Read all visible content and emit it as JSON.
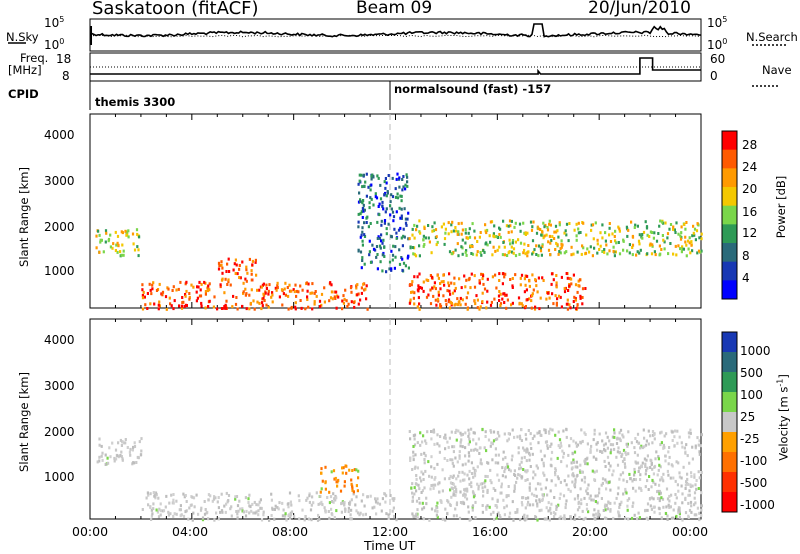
{
  "header": {
    "station": "Saskatoon (fitACF)",
    "beam": "Beam 09",
    "date": "20/Jun/2010"
  },
  "noise_panel": {
    "left_label": "N.Sky",
    "right_label": "N.Search",
    "left_ticks": [
      "10^5",
      "10^0"
    ],
    "right_ticks": [
      "10^5",
      "10^0"
    ]
  },
  "freq_panel": {
    "left_label_1": "Freq.",
    "left_label_2": "[MHz]",
    "right_label": "Nave",
    "left_ticks": [
      "18",
      "8"
    ],
    "right_ticks": [
      "60",
      "0"
    ]
  },
  "cpid": {
    "label": "CPID",
    "segment_1": "themis 3300",
    "segment_2": "normalsound (fast) -157"
  },
  "chart_data": [
    {
      "type": "heatmap",
      "name": "power",
      "ylabel": "Slant Range [km]",
      "xlabel": "",
      "xlim": [
        0,
        24
      ],
      "ylim": [
        180,
        4600
      ],
      "x_ticks": [
        "00:00",
        "04:00",
        "08:00",
        "12:00",
        "16:00",
        "20:00",
        "00:00"
      ],
      "y_ticks": [
        "1000",
        "2000",
        "3000",
        "4000"
      ],
      "colorbar_label": "Power [dB]",
      "colorbar_ticks": [
        "28",
        "24",
        "20",
        "16",
        "12",
        "8",
        "4"
      ],
      "colorbar_colors": [
        "#ff0000",
        "#ff5a00",
        "#ff9a00",
        "#f4c800",
        "#7ad64a",
        "#2e9a56",
        "#2a6a7a",
        "#1838b4",
        "#0000ff"
      ],
      "features": [
        {
          "time_start": 0.2,
          "time_end": 2.0,
          "range_start": 1400,
          "range_end": 2000,
          "level": "mid"
        },
        {
          "time_start": 2.0,
          "time_end": 11.0,
          "range_start": 180,
          "range_end": 800,
          "level": "high"
        },
        {
          "time_start": 5.0,
          "time_end": 6.5,
          "range_start": 800,
          "range_end": 1400,
          "level": "high"
        },
        {
          "time_start": 10.5,
          "time_end": 12.5,
          "range_start": 1000,
          "range_end": 3300,
          "level": "low"
        },
        {
          "time_start": 12.5,
          "time_end": 19.5,
          "range_start": 180,
          "range_end": 1000,
          "level": "high"
        },
        {
          "time_start": 12.5,
          "time_end": 24.0,
          "range_start": 1400,
          "range_end": 2200,
          "level": "mid"
        }
      ]
    },
    {
      "type": "heatmap",
      "name": "velocity",
      "ylabel": "Slant Range [km]",
      "xlabel": "Time UT",
      "xlim": [
        0,
        24
      ],
      "ylim": [
        180,
        4600
      ],
      "x_ticks": [
        "00:00",
        "04:00",
        "08:00",
        "12:00",
        "16:00",
        "20:00",
        "00:00"
      ],
      "y_ticks": [
        "1000",
        "2000",
        "3000",
        "4000"
      ],
      "colorbar_label": "Velocity [m s^-1]",
      "colorbar_ticks": [
        "1000",
        "500",
        "100",
        "25",
        "-25",
        "-100",
        "-500",
        "-1000"
      ],
      "colorbar_colors": [
        "#1838b4",
        "#2a6a7a",
        "#2e9a56",
        "#7ad64a",
        "#c8c8c8",
        "#ffa000",
        "#ff7000",
        "#ff3000",
        "#ff0000"
      ],
      "features": [
        {
          "time_start": 0.2,
          "time_end": 2.0,
          "range_start": 1400,
          "range_end": 2000,
          "level": "gray"
        },
        {
          "time_start": 2.0,
          "time_end": 12.0,
          "range_start": 180,
          "range_end": 800,
          "level": "gray"
        },
        {
          "time_start": 9.0,
          "time_end": 10.5,
          "range_start": 800,
          "range_end": 1400,
          "level": "orange"
        },
        {
          "time_start": 12.5,
          "time_end": 24.0,
          "range_start": 180,
          "range_end": 2200,
          "level": "gray"
        }
      ]
    }
  ]
}
